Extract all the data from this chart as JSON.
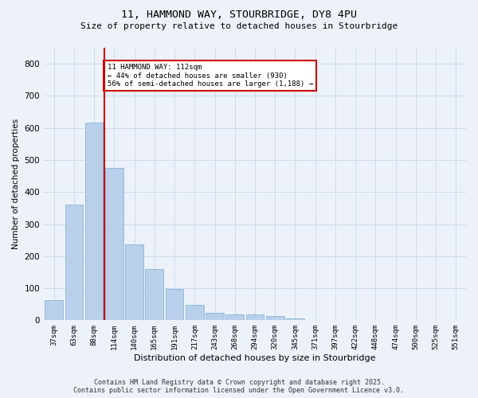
{
  "title_line1": "11, HAMMOND WAY, STOURBRIDGE, DY8 4PU",
  "title_line2": "Size of property relative to detached houses in Stourbridge",
  "xlabel": "Distribution of detached houses by size in Stourbridge",
  "ylabel": "Number of detached properties",
  "bar_labels": [
    "37sqm",
    "63sqm",
    "88sqm",
    "114sqm",
    "140sqm",
    "165sqm",
    "191sqm",
    "217sqm",
    "243sqm",
    "268sqm",
    "294sqm",
    "320sqm",
    "345sqm",
    "371sqm",
    "397sqm",
    "422sqm",
    "448sqm",
    "474sqm",
    "500sqm",
    "525sqm",
    "551sqm"
  ],
  "bar_values": [
    62,
    360,
    617,
    474,
    236,
    160,
    98,
    48,
    22,
    18,
    18,
    13,
    5,
    2,
    1,
    1,
    1,
    1,
    1,
    1,
    1
  ],
  "bar_color": "#b8d0ea",
  "bar_edge_color": "#7aafd4",
  "grid_color": "#c8d8ea",
  "background_color": "#edf2fa",
  "vline_color": "#cc0000",
  "annotation_text": "11 HAMMOND WAY: 112sqm\n← 44% of detached houses are smaller (930)\n56% of semi-detached houses are larger (1,188) →",
  "annotation_box_facecolor": "#ffffff",
  "annotation_box_edgecolor": "#cc0000",
  "ylim": [
    0,
    850
  ],
  "yticks": [
    0,
    100,
    200,
    300,
    400,
    500,
    600,
    700,
    800
  ],
  "footer_line1": "Contains HM Land Registry data © Crown copyright and database right 2025.",
  "footer_line2": "Contains public sector information licensed under the Open Government Licence v3.0."
}
